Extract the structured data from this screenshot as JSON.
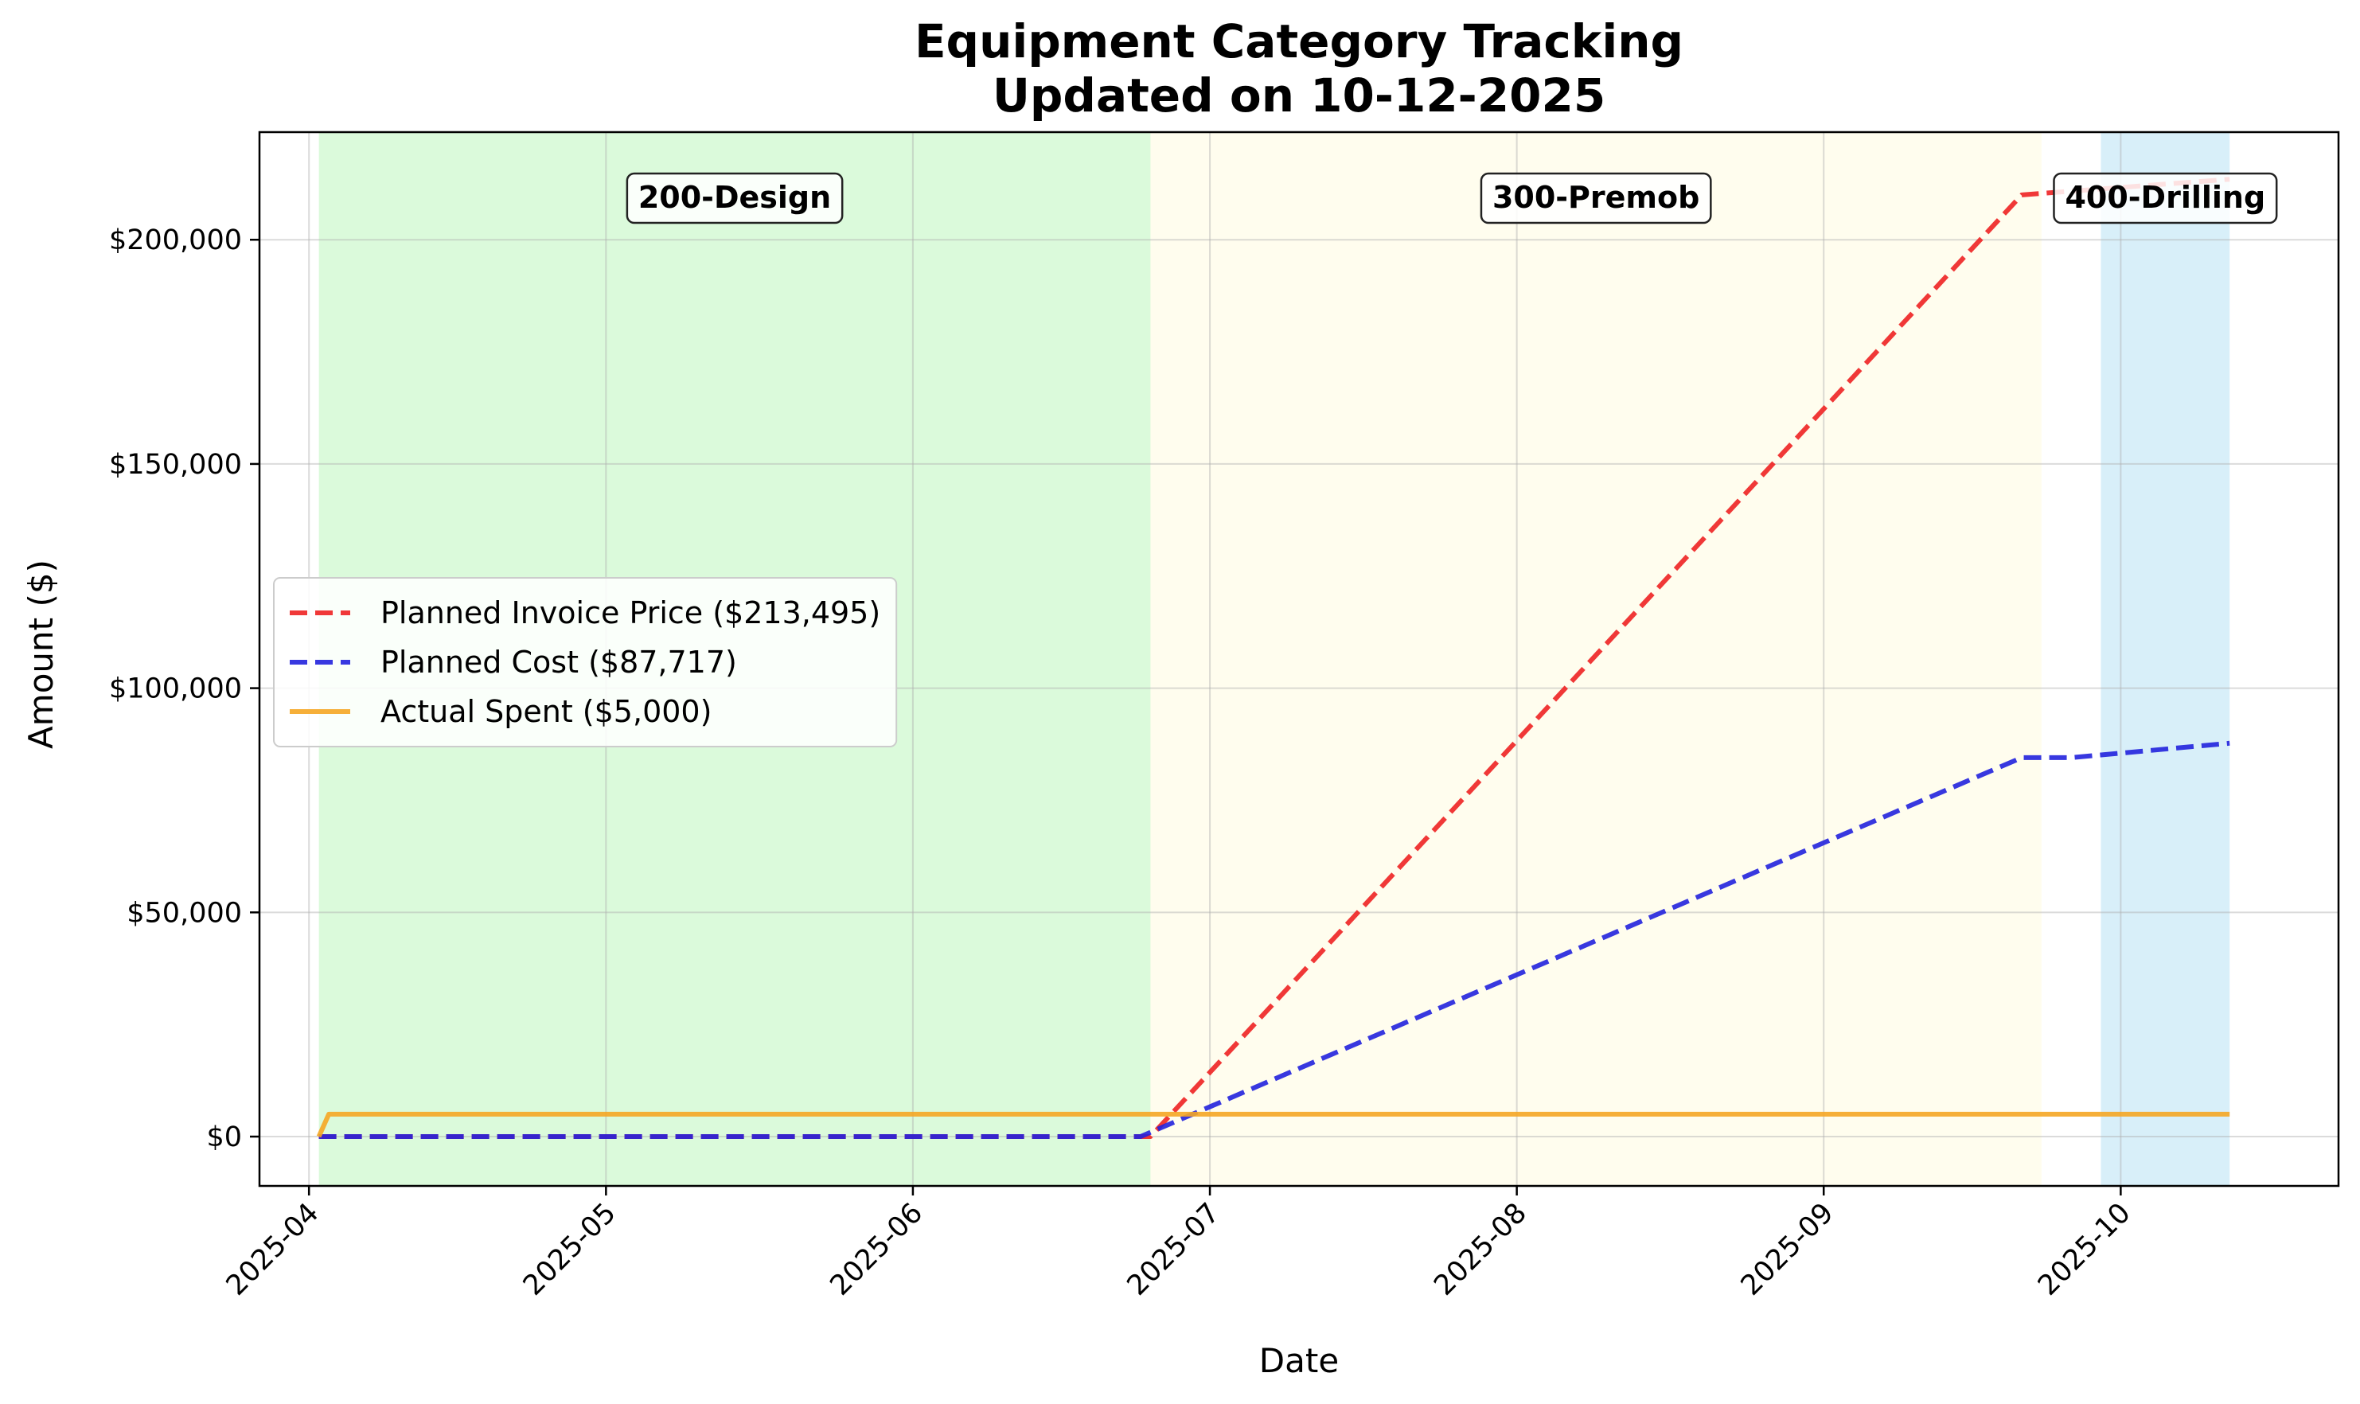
{
  "chart_data": {
    "type": "line",
    "title": "Equipment Category Tracking",
    "subtitle": "Updated on 10-12-2025",
    "xlabel": "Date",
    "ylabel": "Amount ($)",
    "x_axis_type": "date",
    "xlim": [
      "2025-03-27",
      "2025-10-23"
    ],
    "ylim": [
      -11000,
      224000
    ],
    "x_ticks": [
      "2025-04-01",
      "2025-05-01",
      "2025-06-01",
      "2025-07-01",
      "2025-08-01",
      "2025-09-01",
      "2025-10-01"
    ],
    "x_tick_labels": [
      "2025-04",
      "2025-05",
      "2025-06",
      "2025-07",
      "2025-08",
      "2025-09",
      "2025-10"
    ],
    "y_ticks": [
      0,
      50000,
      100000,
      150000,
      200000
    ],
    "y_tick_labels": [
      "$0",
      "$50,000",
      "$100,000",
      "$150,000",
      "$200,000"
    ],
    "grid": true,
    "legend_position": "center-left",
    "phases": [
      {
        "label": "200-Design",
        "start": "2025-04-02",
        "end": "2025-06-25",
        "color": "#90ee90"
      },
      {
        "label": "300-Premob",
        "start": "2025-06-25",
        "end": "2025-09-23",
        "color": "#fffacd"
      },
      {
        "label": "400-Drilling",
        "start": "2025-09-29",
        "end": "2025-10-12",
        "color": "#87ceeb"
      }
    ],
    "series": [
      {
        "name": "Planned Invoice Price ($213,495)",
        "color": "#ee2222",
        "style": "dashed",
        "points": [
          {
            "x": "2025-04-02",
            "y": 0
          },
          {
            "x": "2025-06-25",
            "y": 0
          },
          {
            "x": "2025-09-21",
            "y": 210000
          },
          {
            "x": "2025-10-12",
            "y": 213495
          }
        ]
      },
      {
        "name": "Planned Cost ($87,717)",
        "color": "#2222dd",
        "style": "dashed",
        "points": [
          {
            "x": "2025-04-02",
            "y": 0
          },
          {
            "x": "2025-06-24",
            "y": 0
          },
          {
            "x": "2025-09-21",
            "y": 84500
          },
          {
            "x": "2025-09-26",
            "y": 84500
          },
          {
            "x": "2025-10-12",
            "y": 87717
          }
        ]
      },
      {
        "name": "Actual Spent ($5,000)",
        "color": "#f5a623",
        "style": "solid",
        "points": [
          {
            "x": "2025-04-02",
            "y": 0
          },
          {
            "x": "2025-04-03",
            "y": 5000
          },
          {
            "x": "2025-10-12",
            "y": 5000
          }
        ]
      }
    ]
  }
}
